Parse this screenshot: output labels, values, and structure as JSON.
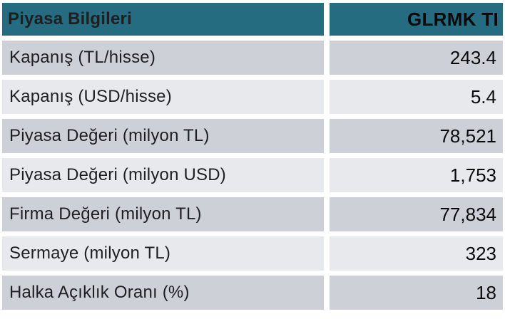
{
  "table": {
    "header": {
      "title": "Piyasa Bilgileri",
      "ticker": "GLRMK TI"
    },
    "rows": [
      {
        "label": "Kapanış (TL/hisse)",
        "value": "243.4"
      },
      {
        "label": "Kapanış (USD/hisse)",
        "value": "5.4"
      },
      {
        "label": "Piyasa Değeri (milyon TL)",
        "value": "78,521"
      },
      {
        "label": "Piyasa Değeri (milyon USD)",
        "value": "1,753"
      },
      {
        "label": "Firma Değeri (milyon TL)",
        "value": "77,834"
      },
      {
        "label": "Sermaye (milyon TL)",
        "value": "323"
      },
      {
        "label": "Halka Açıklık Oranı (%)",
        "value": "18"
      }
    ],
    "colors": {
      "header_bg": "#256C80",
      "row_dark": "#CDD1D7",
      "row_light": "#E7E9EC",
      "header_text": "#FFFFFF",
      "body_text": "#1A1A1A"
    }
  },
  "chart_data": {
    "type": "table",
    "title": "Piyasa Bilgileri",
    "columns": [
      "Piyasa Bilgileri",
      "GLRMK TI"
    ],
    "rows": [
      [
        "Kapanış (TL/hisse)",
        "243.4"
      ],
      [
        "Kapanış (USD/hisse)",
        "5.4"
      ],
      [
        "Piyasa Değeri (milyon TL)",
        "78,521"
      ],
      [
        "Piyasa Değeri (milyon USD)",
        "1,753"
      ],
      [
        "Firma Değeri (milyon TL)",
        "77,834"
      ],
      [
        "Sermaye (milyon TL)",
        "323"
      ],
      [
        "Halka Açıklık Oranı (%)",
        "18"
      ]
    ]
  }
}
